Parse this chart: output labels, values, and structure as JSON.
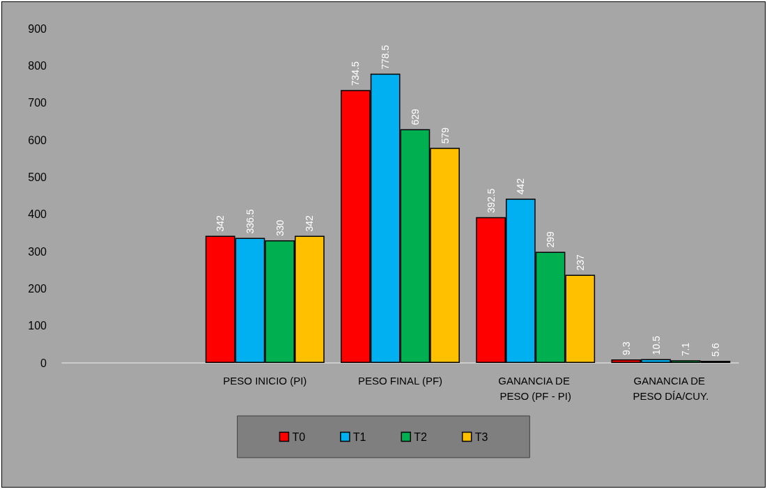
{
  "chart_data": {
    "type": "bar",
    "categories": [
      null,
      "PESO INICIO (PI)",
      "PESO FINAL (PF)",
      "GANANCIA DE PESO (PF - PI)",
      "GANANCIA DE PESO DÍA/CUY."
    ],
    "series": [
      {
        "name": "T0",
        "color": "#ff0000",
        "values": [
          null,
          342,
          734.5,
          392.5,
          9.3
        ]
      },
      {
        "name": "T1",
        "color": "#00b0f0",
        "values": [
          null,
          336.5,
          778.5,
          442,
          10.5
        ]
      },
      {
        "name": "T2",
        "color": "#00b050",
        "values": [
          null,
          330,
          629,
          299,
          7.1
        ]
      },
      {
        "name": "T3",
        "color": "#ffc000",
        "values": [
          null,
          342,
          579,
          237,
          5.6
        ]
      }
    ],
    "ylim": [
      0,
      900
    ],
    "yticks": [
      0,
      100,
      200,
      300,
      400,
      500,
      600,
      700,
      800,
      900
    ],
    "data_labels": true,
    "grid": false,
    "legend": "bottom"
  }
}
